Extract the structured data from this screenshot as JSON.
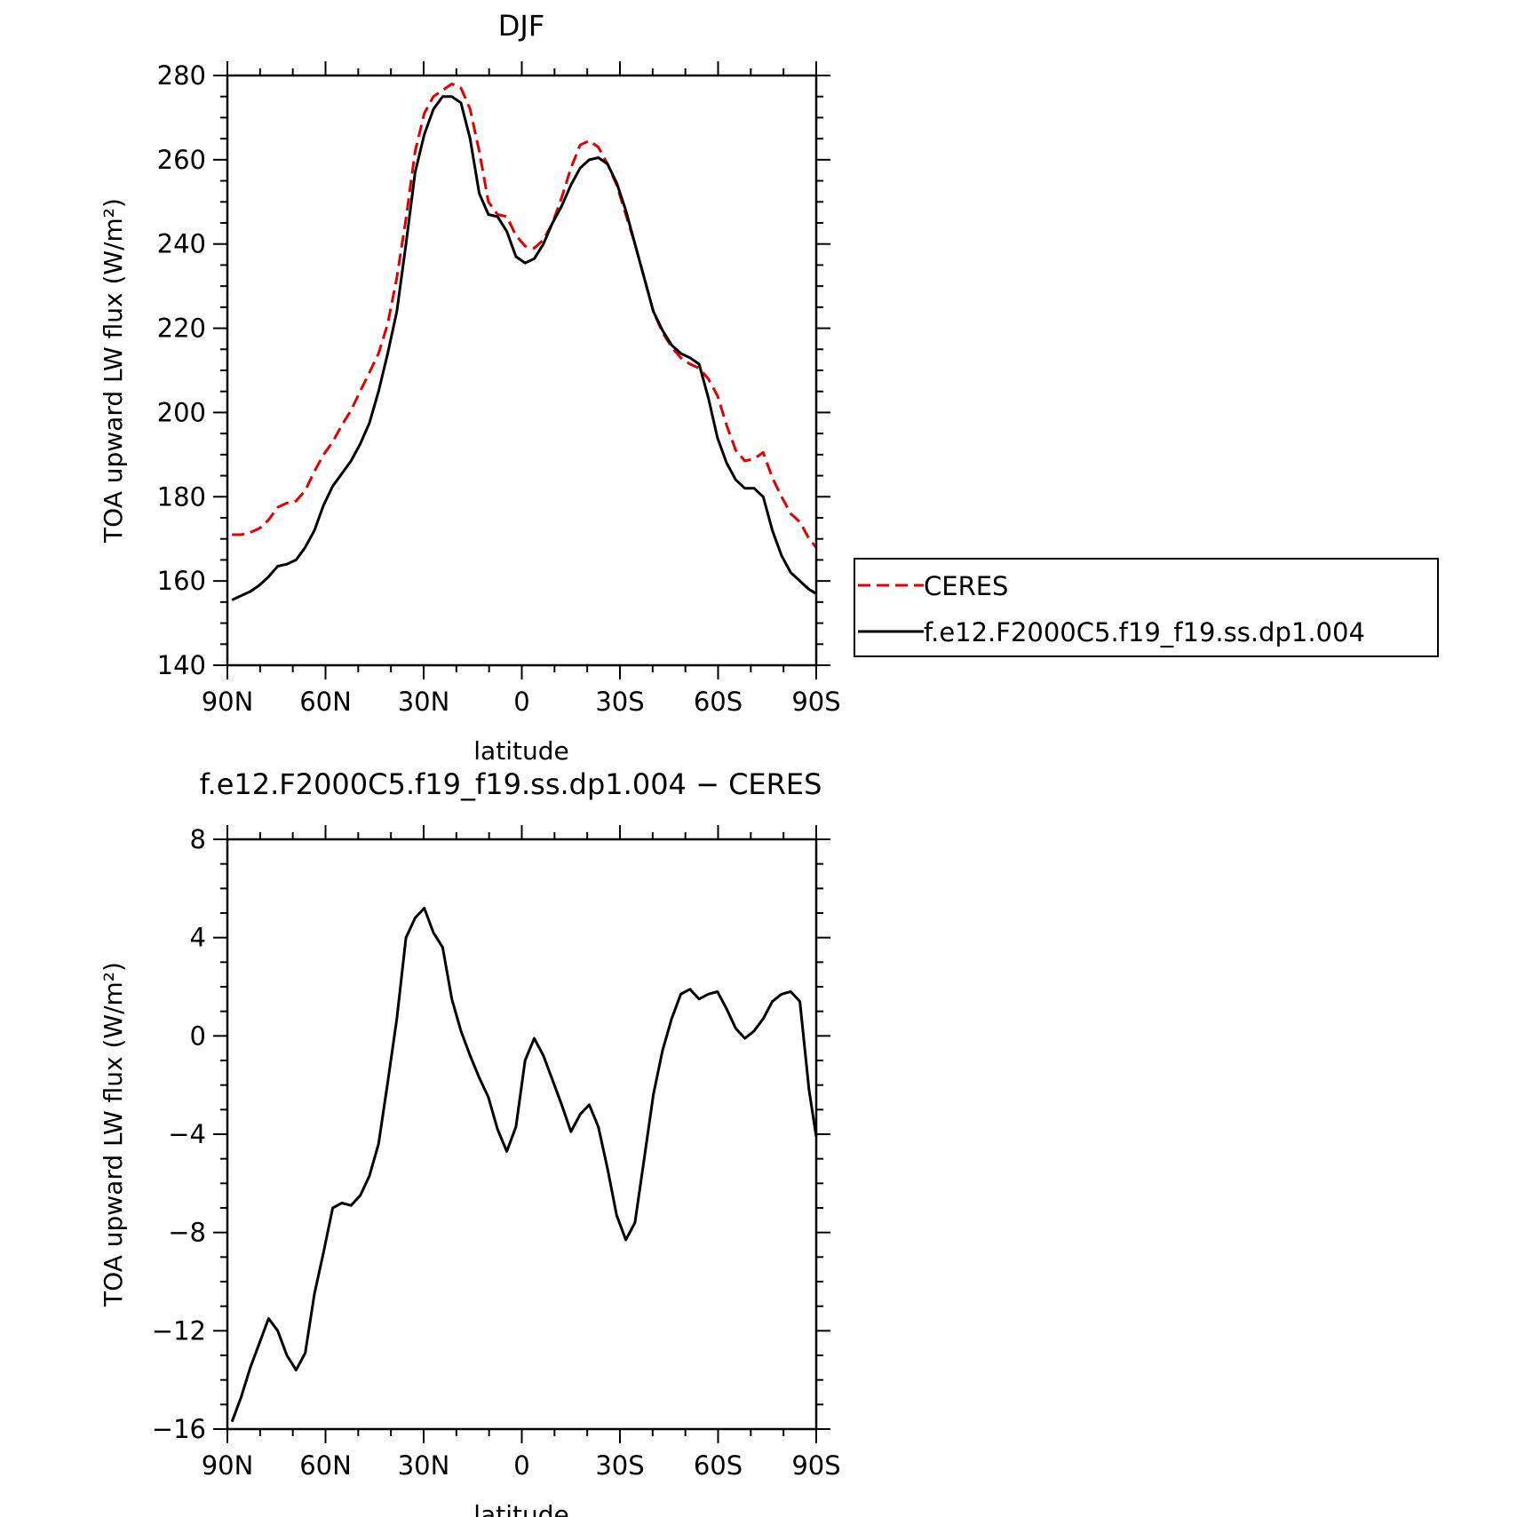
{
  "chart_data": [
    {
      "type": "line",
      "title": "DJF",
      "xlabel": "latitude",
      "ylabel": "TOA upward LW flux (W/m²)",
      "xlim": [
        -90,
        90
      ],
      "ylim": [
        140,
        280
      ],
      "x_ticks": [
        -90,
        -60,
        -30,
        0,
        30,
        60,
        90
      ],
      "x_tick_labels": [
        "90N",
        "60N",
        "30N",
        "0",
        "30S",
        "60S",
        "90S"
      ],
      "y_ticks": [
        140,
        160,
        180,
        200,
        220,
        240,
        260,
        280
      ],
      "y_tick_labels": [
        "140",
        "160",
        "180",
        "200",
        "220",
        "240",
        "260",
        "280"
      ],
      "legend_position": "right",
      "series": [
        {
          "name": "CERES",
          "color": "#e00000",
          "dash": "dashed",
          "x": [
            -88.6,
            -85.8,
            -83,
            -80.2,
            -77.4,
            -74.6,
            -71.8,
            -69,
            -66.2,
            -63.4,
            -60.6,
            -57.8,
            -55,
            -52.2,
            -49.4,
            -46.6,
            -43.8,
            -41,
            -38.2,
            -35.4,
            -32.6,
            -29.8,
            -27,
            -24.2,
            -21.4,
            -18.6,
            -15.8,
            -13,
            -10.2,
            -7.4,
            -4.6,
            -1.8,
            1,
            3.8,
            6.6,
            9.4,
            12.2,
            15,
            17.8,
            20.6,
            23.4,
            26.2,
            29,
            31.8,
            34.6,
            37.4,
            40.2,
            43,
            45.8,
            48.6,
            51.4,
            54.2,
            57,
            59.8,
            62.6,
            65.4,
            68.2,
            71,
            73.8,
            76.6,
            79.4,
            82.2,
            85,
            87.8,
            90
          ],
          "y": [
            171,
            171,
            171.5,
            172.5,
            174.5,
            177.5,
            178.5,
            179,
            181.5,
            186,
            190,
            193,
            197,
            200.5,
            205,
            209.5,
            214,
            221,
            232,
            246,
            262,
            271,
            275,
            276.5,
            278,
            277,
            272,
            262,
            250,
            247,
            246.5,
            242,
            239.5,
            239,
            241,
            245,
            251,
            258,
            263.5,
            264.5,
            263,
            259,
            254,
            247,
            240,
            232,
            224,
            219,
            215.5,
            213,
            211.5,
            210.5,
            208,
            204,
            197,
            191,
            188.5,
            189,
            190.5,
            184.5,
            180,
            176,
            174,
            170,
            168
          ]
        },
        {
          "name": "f.e12.F2000C5.f19_f19.ss.dp1.004",
          "color": "#000000",
          "dash": "solid",
          "x": [
            -88.6,
            -85.8,
            -83,
            -80.2,
            -77.4,
            -74.6,
            -71.8,
            -69,
            -66.2,
            -63.4,
            -60.6,
            -57.8,
            -55,
            -52.2,
            -49.4,
            -46.6,
            -43.8,
            -41,
            -38.2,
            -35.4,
            -32.6,
            -29.8,
            -27,
            -24.2,
            -21.4,
            -18.6,
            -15.8,
            -13,
            -10.2,
            -7.4,
            -4.6,
            -1.8,
            1,
            3.8,
            6.6,
            9.4,
            12.2,
            15,
            17.8,
            20.6,
            23.4,
            26.2,
            29,
            31.8,
            34.6,
            37.4,
            40.2,
            43,
            45.8,
            48.6,
            51.4,
            54.2,
            57,
            59.8,
            62.6,
            65.4,
            68.2,
            71,
            73.8,
            76.6,
            79.4,
            82.2,
            85,
            87.8,
            90
          ],
          "y": [
            155.5,
            156.5,
            157.5,
            159,
            161,
            163.5,
            164,
            165,
            168,
            172,
            178,
            182.5,
            185.5,
            188.5,
            192.5,
            197.5,
            205,
            214,
            224,
            240,
            257,
            266,
            272,
            275,
            275,
            273.5,
            265,
            252,
            247,
            246.5,
            243,
            237,
            235.5,
            236.5,
            240,
            245,
            249,
            254,
            258,
            260,
            260.5,
            259,
            254.5,
            248,
            240,
            232,
            224,
            219.5,
            216,
            214,
            213,
            211.5,
            203.5,
            194,
            188,
            184,
            182,
            182,
            180,
            172,
            166,
            162,
            160,
            158,
            157
          ]
        }
      ]
    },
    {
      "type": "line",
      "title": "f.e12.F2000C5.f19_f19.ss.dp1.004 − CERES",
      "xlabel": "latitude",
      "ylabel": "TOA upward LW flux (W/m²)",
      "xlim": [
        -90,
        90
      ],
      "ylim": [
        -16,
        8
      ],
      "x_ticks": [
        -90,
        -60,
        -30,
        0,
        30,
        60,
        90
      ],
      "x_tick_labels": [
        "90N",
        "60N",
        "30N",
        "0",
        "30S",
        "60S",
        "90S"
      ],
      "y_ticks": [
        -16,
        -12,
        -8,
        -4,
        0,
        4,
        8
      ],
      "y_tick_labels": [
        "−16",
        "−12",
        "−8",
        "−4",
        "0",
        "4",
        "8"
      ],
      "series": [
        {
          "color": "#000000",
          "dash": "solid",
          "x": [
            -88.6,
            -85.8,
            -83,
            -80.2,
            -77.4,
            -74.6,
            -71.8,
            -69,
            -66.2,
            -63.4,
            -60.6,
            -57.8,
            -55,
            -52.2,
            -49.4,
            -46.6,
            -43.8,
            -41,
            -38.2,
            -35.4,
            -32.6,
            -29.8,
            -27,
            -24.2,
            -21.4,
            -18.6,
            -15.8,
            -13,
            -10.2,
            -7.4,
            -4.6,
            -1.8,
            1,
            3.8,
            6.6,
            9.4,
            12.2,
            15,
            17.8,
            20.6,
            23.4,
            26.2,
            29,
            31.8,
            34.6,
            37.4,
            40.2,
            43,
            45.8,
            48.6,
            51.4,
            54.2,
            57,
            59.8,
            62.6,
            65.4,
            68.2,
            71,
            73.8,
            76.6,
            79.4,
            82.2,
            85,
            87.8,
            90
          ],
          "y": [
            -15.7,
            -14.7,
            -13.5,
            -12.5,
            -11.5,
            -12,
            -13,
            -13.6,
            -12.9,
            -10.5,
            -8.8,
            -7,
            -6.8,
            -6.9,
            -6.5,
            -5.7,
            -4.4,
            -1.9,
            0.7,
            4,
            4.8,
            5.2,
            4.2,
            3.6,
            1.5,
            0.2,
            -0.8,
            -1.7,
            -2.5,
            -3.8,
            -4.7,
            -3.7,
            -1,
            -0.1,
            -0.8,
            -1.8,
            -2.8,
            -3.9,
            -3.2,
            -2.8,
            -3.7,
            -5.4,
            -7.3,
            -8.3,
            -7.6,
            -5,
            -2.4,
            -0.6,
            0.7,
            1.7,
            1.9,
            1.5,
            1.7,
            1.8,
            1.1,
            0.3,
            -0.1,
            0.2,
            0.7,
            1.4,
            1.7,
            1.8,
            1.4,
            -2.2,
            -4.1
          ]
        }
      ]
    }
  ]
}
